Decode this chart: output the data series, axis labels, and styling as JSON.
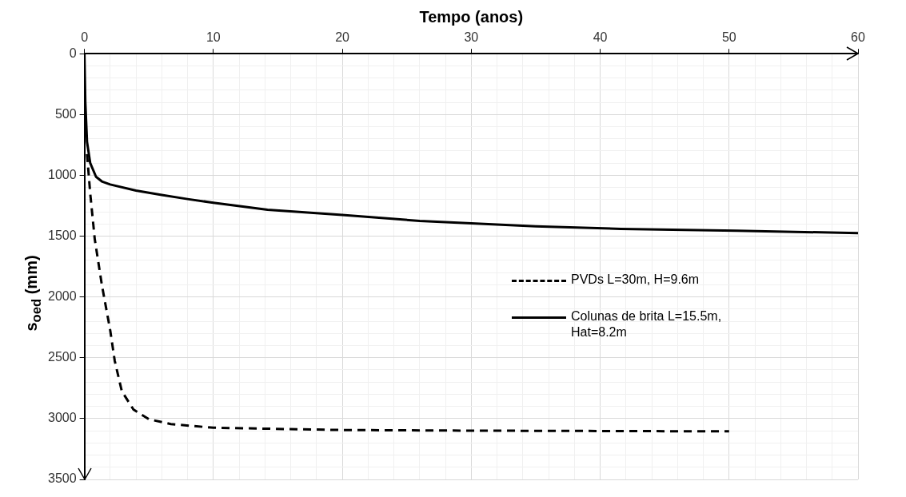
{
  "chart_data": {
    "type": "line",
    "xlabel": "Tempo (anos)",
    "ylabel": "s$_{oed}$ (mm)",
    "xlim": [
      0,
      60
    ],
    "ylim": [
      3500,
      0
    ],
    "xticks": [
      0,
      {
        "value": 2,
        "label": null
      },
      {
        "value": 4,
        "label": null
      },
      {
        "value": 6,
        "label": null
      },
      {
        "value": 8,
        "label": null
      },
      10,
      {
        "value": 12,
        "label": null
      },
      {
        "value": 14,
        "label": null
      },
      {
        "value": 16,
        "label": null
      },
      {
        "value": 18,
        "label": null
      },
      20,
      {
        "value": 22,
        "label": null
      },
      {
        "value": 24,
        "label": null
      },
      {
        "value": 26,
        "label": null
      },
      {
        "value": 28,
        "label": null
      },
      30,
      {
        "value": 32,
        "label": null
      },
      {
        "value": 34,
        "label": null
      },
      {
        "value": 36,
        "label": null
      },
      {
        "value": 38,
        "label": null
      },
      40,
      {
        "value": 42,
        "label": null
      },
      {
        "value": 44,
        "label": null
      },
      {
        "value": 46,
        "label": null
      },
      {
        "value": 48,
        "label": null
      },
      50,
      {
        "value": 52,
        "label": null
      },
      {
        "value": 54,
        "label": null
      },
      {
        "value": 56,
        "label": null
      },
      {
        "value": 58,
        "label": null
      },
      60
    ],
    "yticks": [
      0,
      {
        "value": 100,
        "label": null
      },
      {
        "value": 200,
        "label": null
      },
      {
        "value": 300,
        "label": null
      },
      {
        "value": 400,
        "label": null
      },
      500,
      {
        "value": 600,
        "label": null
      },
      {
        "value": 700,
        "label": null
      },
      {
        "value": 800,
        "label": null
      },
      {
        "value": 900,
        "label": null
      },
      1000,
      {
        "value": 1100,
        "label": null
      },
      {
        "value": 1200,
        "label": null
      },
      {
        "value": 1300,
        "label": null
      },
      {
        "value": 1400,
        "label": null
      },
      1500,
      {
        "value": 1600,
        "label": null
      },
      {
        "value": 1700,
        "label": null
      },
      {
        "value": 1800,
        "label": null
      },
      {
        "value": 1900,
        "label": null
      },
      2000,
      {
        "value": 2100,
        "label": null
      },
      {
        "value": 2200,
        "label": null
      },
      {
        "value": 2300,
        "label": null
      },
      {
        "value": 2400,
        "label": null
      },
      2500,
      {
        "value": 2600,
        "label": null
      },
      {
        "value": 2700,
        "label": null
      },
      {
        "value": 2800,
        "label": null
      },
      {
        "value": 2900,
        "label": null
      },
      3000,
      {
        "value": 3100,
        "label": null
      },
      {
        "value": 3200,
        "label": null
      },
      {
        "value": 3300,
        "label": null
      },
      {
        "value": 3400,
        "label": null
      },
      3500
    ],
    "grid": true,
    "legend": "right",
    "marker": "none",
    "series": [
      {
        "name": "PVDs L=30m, H=9.6m",
        "color": "#000000",
        "line_style": "dashed",
        "x": [
          0.2,
          0.45,
          0.8,
          1.35,
          2.0,
          2.35,
          2.9,
          3.8,
          5.0,
          6.7,
          10,
          20,
          30,
          40,
          50
        ],
        "values": [
          825,
          1150,
          1525,
          1900,
          2275,
          2525,
          2775,
          2925,
          3005,
          3045,
          3075,
          3094,
          3099,
          3102,
          3105
        ]
      },
      {
        "name": "Colunas de brita L=15.5m, Hat=8.2m",
        "color": "#000000",
        "line_style": "solid",
        "x": [
          0,
          0.07,
          0.2,
          0.45,
          0.9,
          1.35,
          2.0,
          4.0,
          6.0,
          8.0,
          10,
          14.2,
          20,
          26,
          30,
          35,
          41.6,
          50.6,
          60
        ],
        "values": [
          0,
          400,
          725,
          900,
          1012,
          1050,
          1075,
          1125,
          1162,
          1195,
          1225,
          1283,
          1325,
          1375,
          1395,
          1420,
          1440,
          1455,
          1475
        ]
      }
    ]
  }
}
